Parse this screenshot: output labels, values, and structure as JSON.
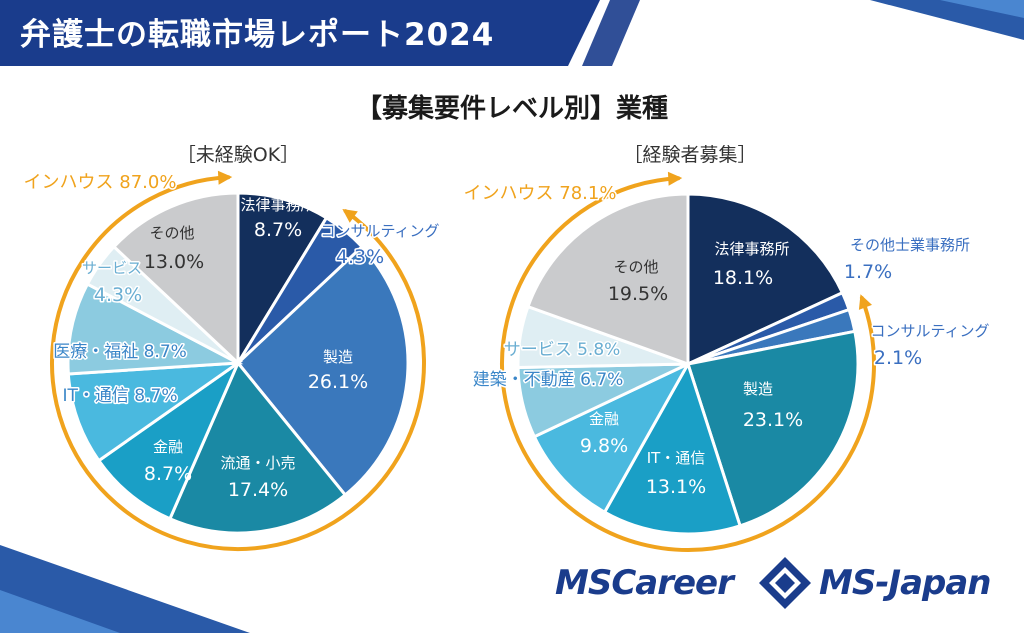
{
  "header": {
    "title": "弁護士の転職市場レポート2024"
  },
  "section_title": "【募集要件レベル別】業種",
  "colors": {
    "navy": "#1a3c8c",
    "orange": "#f0a31d"
  },
  "logos": {
    "mscareer": "MSCareer",
    "msjapan": "MS-Japan"
  },
  "chart_data": [
    {
      "type": "pie",
      "title": "［未経験OK］",
      "categories": [
        "法律事務所",
        "コンサルティング",
        "製造",
        "流通・小売",
        "金融",
        "IT・通信",
        "医療・福祉",
        "サービス",
        "その他"
      ],
      "values": [
        8.7,
        4.3,
        26.1,
        17.4,
        8.7,
        8.7,
        8.7,
        4.3,
        13.0
      ],
      "value_labels": [
        "8.7%",
        "4.3%",
        "26.1%",
        "17.4%",
        "8.7%",
        "8.7%",
        "8.7%",
        "4.3%",
        "13.0%"
      ],
      "colors": [
        "#132f5c",
        "#2a5aa8",
        "#3a78bc",
        "#1a89a4",
        "#1a9fc6",
        "#4ab9df",
        "#8ccbe0",
        "#dfeef3",
        "#cacbcd"
      ],
      "label_colors": [
        "#ffffff",
        "#3a6fc0",
        "#ffffff",
        "#ffffff",
        "#ffffff",
        "#3a86c8",
        "#3a86c8",
        "#6aaed2",
        "#333333"
      ],
      "annotation": {
        "label": "インハウス 87.0%",
        "value": 87.0
      }
    },
    {
      "type": "pie",
      "title": "［経験者募集］",
      "categories": [
        "法律事務所",
        "その他士業事務所",
        "コンサルティング",
        "製造",
        "IT・通信",
        "金融",
        "建築・不動産",
        "サービス",
        "その他"
      ],
      "values": [
        18.1,
        1.7,
        2.1,
        23.1,
        13.1,
        9.8,
        6.7,
        5.8,
        19.5
      ],
      "value_labels": [
        "18.1%",
        "1.7%",
        "2.1%",
        "23.1%",
        "13.1%",
        "9.8%",
        "6.7%",
        "5.8%",
        "19.5%"
      ],
      "colors": [
        "#132f5c",
        "#2a5aa8",
        "#3a78bc",
        "#1a89a4",
        "#1a9fc6",
        "#4ab9df",
        "#8ccbe0",
        "#dfeef3",
        "#cacbcd"
      ],
      "label_colors": [
        "#ffffff",
        "#3a6fc0",
        "#3a6fc0",
        "#ffffff",
        "#ffffff",
        "#ffffff",
        "#3a86c8",
        "#6aaed2",
        "#333333"
      ],
      "annotation": {
        "label": "インハウス 78.1%",
        "value": 78.1
      }
    }
  ]
}
